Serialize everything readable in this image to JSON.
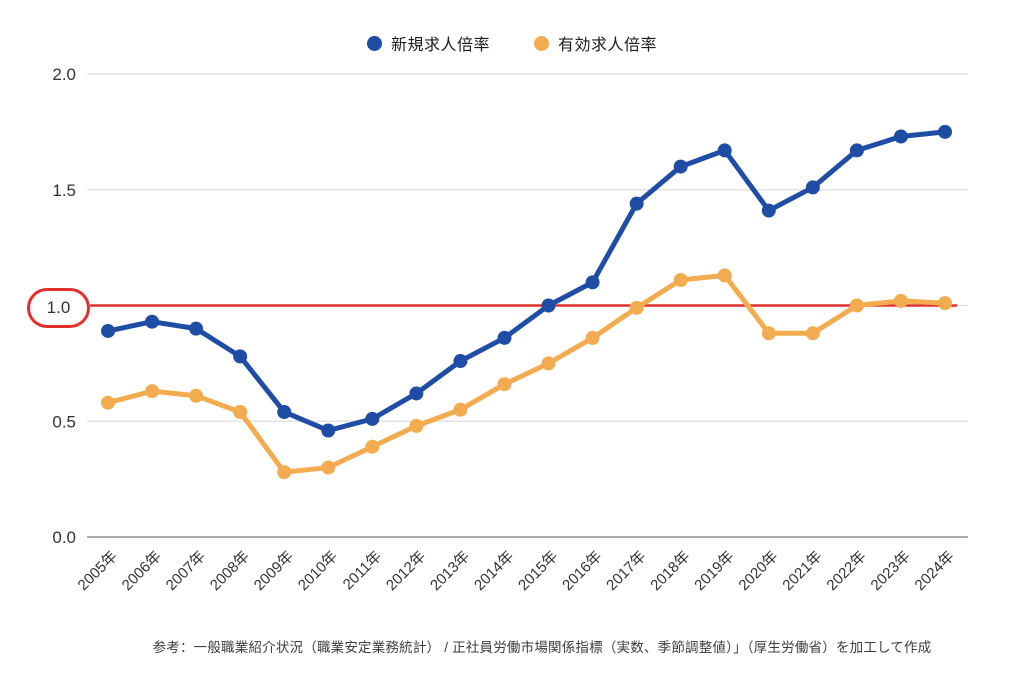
{
  "legend": [
    {
      "label": "新規求人倍率",
      "color": "#1F4CA5"
    },
    {
      "label": "有効求人倍率",
      "color": "#F2AC4F"
    }
  ],
  "reference_line": {
    "value": 1.0,
    "label": "1.0",
    "color": "#E0312E"
  },
  "footnote": "参考：一般職業紹介状況（職業安定業務統計） / 正社員労働市場関係指標（実数、季節調整値）」（厚生労働省）を加工して作成",
  "chart_data": {
    "type": "line",
    "title": "",
    "xlabel": "",
    "ylabel": "",
    "categories": [
      "2005年",
      "2006年",
      "2007年",
      "2008年",
      "2009年",
      "2010年",
      "2011年",
      "2012年",
      "2013年",
      "2014年",
      "2015年",
      "2016年",
      "2017年",
      "2018年",
      "2019年",
      "2020年",
      "2021年",
      "2022年",
      "2023年",
      "2024年"
    ],
    "series": [
      {
        "name": "新規求人倍率",
        "color": "#1F4CA5",
        "values": [
          0.89,
          0.93,
          0.9,
          0.78,
          0.54,
          0.46,
          0.51,
          0.62,
          0.76,
          0.86,
          1.0,
          1.1,
          1.44,
          1.6,
          1.67,
          1.41,
          1.51,
          1.67,
          1.73,
          1.75
        ]
      },
      {
        "name": "有効求人倍率",
        "color": "#F2AC4F",
        "values": [
          0.58,
          0.63,
          0.61,
          0.54,
          0.28,
          0.3,
          0.39,
          0.48,
          0.55,
          0.66,
          0.75,
          0.86,
          0.99,
          1.11,
          1.13,
          0.88,
          0.88,
          1.0,
          1.02,
          1.01
        ]
      }
    ],
    "ylim": [
      0.0,
      2.0
    ],
    "yticks": [
      0.0,
      0.5,
      1.0,
      1.5,
      2.0
    ],
    "ytick_labels": [
      "0.0",
      "0.5",
      "1.0",
      "1.5",
      "2.0"
    ],
    "reference_line": 1.0,
    "grid": true,
    "legend_position": "top"
  }
}
